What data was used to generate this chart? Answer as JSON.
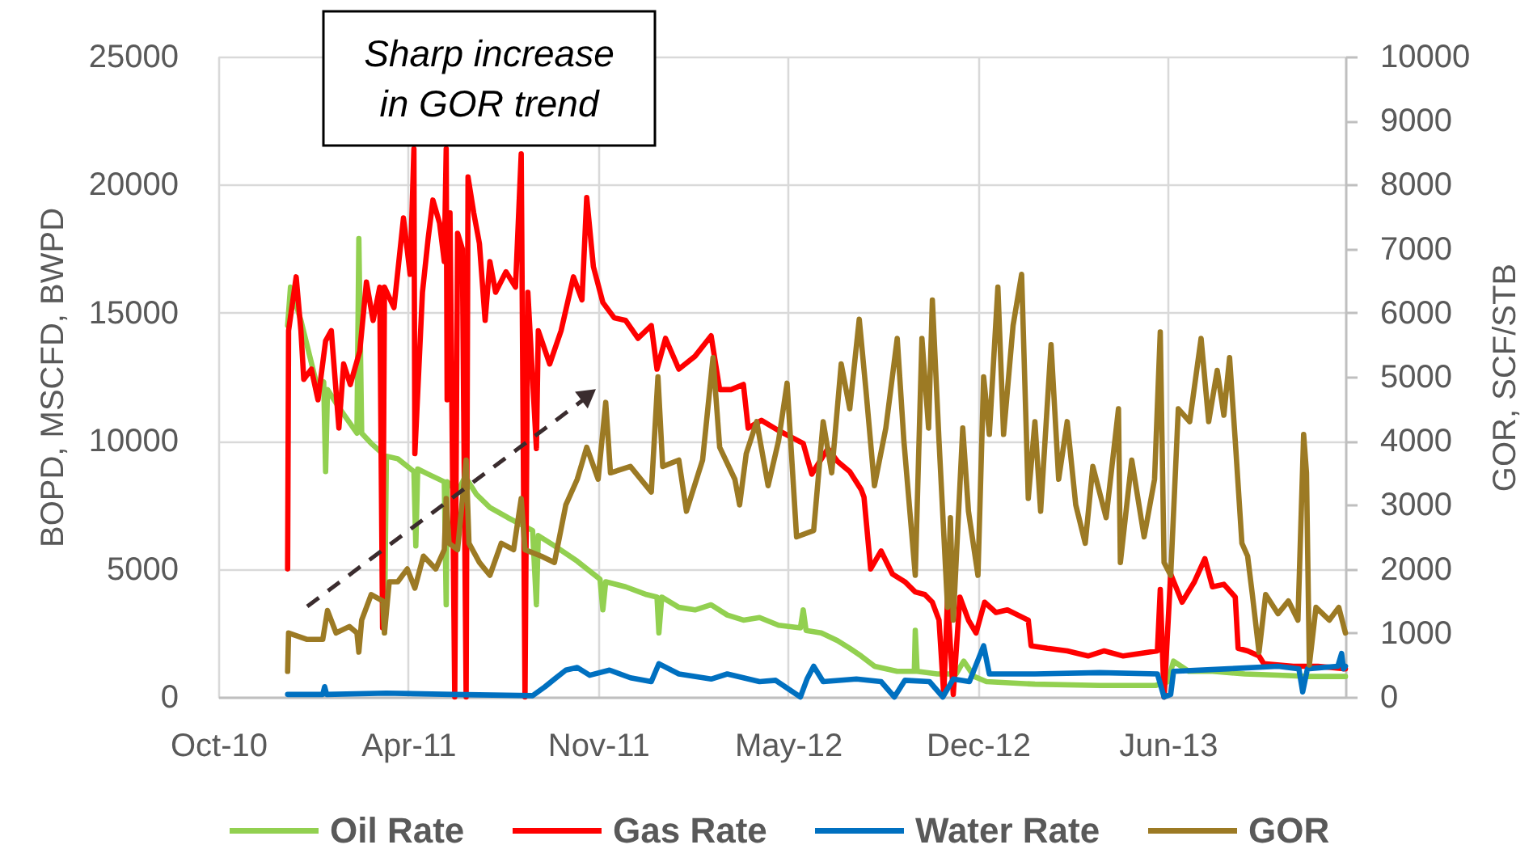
{
  "chart_data": {
    "type": "line",
    "ylabel": "BOPD, MSCFD, BWPD",
    "y2label": "GOR, SCF/STB",
    "annotations": [
      "Sharp increase\nin GOR trend"
    ],
    "xlim": [
      "2010-10-01",
      "2013-12-31"
    ],
    "xticks": [
      {
        "value": "2010-10-01",
        "label": "Oct-10"
      },
      {
        "value": "2011-04-19",
        "label": "Apr-11"
      },
      {
        "value": "2011-11-05",
        "label": "Nov-11"
      },
      {
        "value": "2012-05-23",
        "label": "May-12"
      },
      {
        "value": "2012-12-09",
        "label": "Dec-12"
      },
      {
        "value": "2013-06-27",
        "label": "Jun-13"
      }
    ],
    "ylim": [
      0,
      25000
    ],
    "yticks": [
      0,
      5000,
      10000,
      15000,
      20000,
      25000
    ],
    "y2lim": [
      0,
      10000
    ],
    "y2ticks": [
      0,
      1000,
      2000,
      3000,
      4000,
      5000,
      6000,
      7000,
      8000,
      9000,
      10000
    ],
    "grid": true,
    "legend": "bottom",
    "series": [
      {
        "name": "Oil Rate",
        "color": "#92d050",
        "x": [
          "2010-12-13",
          "2010-12-16",
          "2010-12-27",
          "2011-01-14",
          "2011-01-20",
          "2011-01-22",
          "2011-01-24",
          "2011-02-05",
          "2011-02-24",
          "2011-02-26",
          "2011-03-01",
          "2011-03-11",
          "2011-03-23",
          "2011-03-25",
          "2011-03-27",
          "2011-04-08",
          "2011-04-25",
          "2011-04-27",
          "2011-04-29",
          "2011-05-10",
          "2011-05-27",
          "2011-05-29",
          "2011-05-30",
          "2011-06-10",
          "2011-06-18",
          "2011-06-30",
          "2011-07-14",
          "2011-08-02",
          "2011-08-28",
          "2011-09-01",
          "2011-09-03",
          "2011-09-20",
          "2011-10-14",
          "2011-10-31",
          "2011-11-07",
          "2011-11-10",
          "2011-11-13",
          "2011-12-04",
          "2011-12-26",
          "2012-01-06",
          "2012-01-08",
          "2012-01-11",
          "2012-01-29",
          "2012-02-15",
          "2012-03-03",
          "2012-03-20",
          "2012-04-06",
          "2012-04-23",
          "2012-05-13",
          "2012-06-05",
          "2012-06-08",
          "2012-06-11",
          "2012-06-27",
          "2012-07-14",
          "2012-07-27",
          "2012-08-08",
          "2012-08-22",
          "2012-09-15",
          "2012-10-03",
          "2012-10-04",
          "2012-10-06",
          "2012-10-27",
          "2012-11-16",
          "2012-11-24",
          "2012-12-05",
          "2012-12-18",
          "2013-02-07",
          "2013-04-16",
          "2013-06-14",
          "2013-06-27",
          "2013-07-03",
          "2013-07-19",
          "2013-08-13",
          "2013-09-16",
          "2013-10-21",
          "2013-11-23",
          "2013-12-31"
        ],
        "values": [
          14500,
          16000,
          14700,
          12000,
          12300,
          8800,
          12000,
          11300,
          10300,
          17900,
          10300,
          9900,
          9500,
          2500,
          9400,
          9300,
          8800,
          5900,
          8900,
          8700,
          8400,
          3600,
          8400,
          8000,
          8600,
          7900,
          7400,
          7000,
          6500,
          3600,
          6300,
          5900,
          5300,
          4800,
          4600,
          3400,
          4500,
          4300,
          4000,
          3900,
          2500,
          3900,
          3500,
          3400,
          3600,
          3200,
          3000,
          3100,
          2800,
          2700,
          3400,
          2600,
          2500,
          2200,
          1900,
          1600,
          1200,
          1000,
          1000,
          2600,
          1000,
          900,
          900,
          1400,
          800,
          600,
          500,
          450,
          450,
          600,
          1400,
          1000,
          1000,
          900,
          850,
          800,
          800
        ]
      },
      {
        "name": "Gas Rate",
        "color": "#ff0000",
        "x": [
          "2010-12-13",
          "2010-12-14",
          "2010-12-22",
          "2010-12-27",
          "2010-12-30",
          "2011-01-07",
          "2011-01-14",
          "2011-01-22",
          "2011-01-28",
          "2011-02-05",
          "2011-02-10",
          "2011-02-17",
          "2011-02-27",
          "2011-03-06",
          "2011-03-13",
          "2011-03-20",
          "2011-03-23",
          "2011-03-25",
          "2011-04-04",
          "2011-04-14",
          "2011-04-21",
          "2011-04-25",
          "2011-04-26",
          "2011-05-04",
          "2011-05-10",
          "2011-05-15",
          "2011-05-22",
          "2011-05-27",
          "2011-05-29",
          "2011-05-30",
          "2011-06-02",
          "2011-06-07",
          "2011-06-10",
          "2011-06-15",
          "2011-06-19",
          "2011-06-21",
          "2011-06-27",
          "2011-07-03",
          "2011-07-09",
          "2011-07-14",
          "2011-07-20",
          "2011-07-31",
          "2011-08-10",
          "2011-08-16",
          "2011-08-20",
          "2011-08-23",
          "2011-09-01",
          "2011-09-03",
          "2011-09-15",
          "2011-09-27",
          "2011-10-10",
          "2011-10-19",
          "2011-10-24",
          "2011-10-31",
          "2011-11-10",
          "2011-11-22",
          "2011-12-04",
          "2011-12-17",
          "2011-12-31",
          "2012-01-06",
          "2012-01-15",
          "2012-01-29",
          "2012-02-15",
          "2012-03-03",
          "2012-03-12",
          "2012-03-24",
          "2012-04-06",
          "2012-04-11",
          "2012-04-25",
          "2012-05-13",
          "2012-06-08",
          "2012-06-17",
          "2012-07-04",
          "2012-07-14",
          "2012-07-27",
          "2012-08-08",
          "2012-08-11",
          "2012-08-18",
          "2012-08-29",
          "2012-09-10",
          "2012-09-23",
          "2012-10-04",
          "2012-10-14",
          "2012-10-22",
          "2012-10-29",
          "2012-11-03",
          "2012-11-07",
          "2012-11-13",
          "2012-11-20",
          "2012-11-29",
          "2012-12-07",
          "2012-12-16",
          "2012-12-28",
          "2013-01-09",
          "2013-01-31",
          "2013-02-03",
          "2013-02-20",
          "2013-03-13",
          "2013-04-04",
          "2013-04-21",
          "2013-05-11",
          "2013-06-16",
          "2013-06-19",
          "2013-06-23",
          "2013-06-30",
          "2013-07-12",
          "2013-07-25",
          "2013-08-05",
          "2013-08-13",
          "2013-08-25",
          "2013-09-06",
          "2013-09-09",
          "2013-09-19",
          "2013-10-01",
          "2013-10-06",
          "2013-11-06",
          "2013-12-02",
          "2013-12-31"
        ],
        "values": [
          5000,
          14300,
          16400,
          14300,
          12400,
          12800,
          11600,
          13900,
          14300,
          10500,
          13000,
          12200,
          13500,
          16200,
          14700,
          16000,
          2700,
          16000,
          15200,
          18700,
          16500,
          21400,
          9500,
          15800,
          17900,
          19400,
          18500,
          17000,
          21400,
          11600,
          18900,
          0,
          18100,
          17500,
          0,
          20300,
          18900,
          17700,
          14700,
          17000,
          15800,
          16600,
          16000,
          21200,
          0,
          15800,
          9700,
          14300,
          13000,
          14300,
          16400,
          15500,
          19500,
          16800,
          15400,
          14800,
          14700,
          14000,
          14500,
          12800,
          14000,
          12800,
          13300,
          14100,
          12000,
          12000,
          12200,
          10500,
          10800,
          10400,
          9900,
          8700,
          9700,
          9200,
          8800,
          8100,
          7800,
          5000,
          5700,
          4800,
          4500,
          4100,
          4000,
          3700,
          3000,
          100,
          3900,
          100,
          3900,
          3000,
          2500,
          3700,
          3300,
          3400,
          3000,
          2000,
          1900,
          1800,
          1600,
          1800,
          1600,
          1800,
          4200,
          0,
          4800,
          3700,
          4500,
          5400,
          4300,
          4400,
          3900,
          1900,
          1800,
          1600,
          1300,
          1200,
          1200,
          1100
        ]
      },
      {
        "name": "Water Rate",
        "color": "#0070c0",
        "x": [
          "2010-12-13",
          "2011-01-19",
          "2011-01-21",
          "2011-01-23",
          "2011-03-27",
          "2011-06-05",
          "2011-08-28",
          "2011-09-10",
          "2011-09-20",
          "2011-10-02",
          "2011-10-14",
          "2011-10-27",
          "2011-11-17",
          "2011-12-09",
          "2011-12-31",
          "2012-01-08",
          "2012-01-29",
          "2012-03-03",
          "2012-03-20",
          "2012-04-23",
          "2012-05-10",
          "2012-06-05",
          "2012-06-12",
          "2012-06-19",
          "2012-06-29",
          "2012-08-03",
          "2012-08-29",
          "2012-09-12",
          "2012-09-23",
          "2012-10-19",
          "2012-11-02",
          "2012-11-13",
          "2012-11-30",
          "2012-12-15",
          "2012-12-21",
          "2013-02-07",
          "2013-04-16",
          "2013-06-16",
          "2013-06-23",
          "2013-06-30",
          "2013-07-03",
          "2013-08-30",
          "2013-10-21",
          "2013-11-12",
          "2013-11-16",
          "2013-11-21",
          "2013-12-23",
          "2013-12-27",
          "2013-12-29",
          "2013-12-31"
        ],
        "values": [
          100,
          100,
          400,
          100,
          150,
          100,
          50,
          400,
          700,
          1050,
          1150,
          850,
          1050,
          750,
          600,
          1300,
          900,
          700,
          900,
          600,
          650,
          0,
          700,
          1200,
          600,
          700,
          600,
          0,
          650,
          600,
          0,
          700,
          600,
          2000,
          900,
          900,
          950,
          900,
          0,
          100,
          1000,
          1100,
          1200,
          1100,
          200,
          1100,
          1200,
          1700,
          1100,
          1200
        ]
      },
      {
        "name": "GOR",
        "color": "#9c7a24",
        "axis": "y2",
        "x": [
          "2010-12-13",
          "2010-12-14",
          "2011-01-02",
          "2011-01-19",
          "2011-01-24",
          "2011-02-02",
          "2011-02-16",
          "2011-02-24",
          "2011-02-26",
          "2011-03-01",
          "2011-03-11",
          "2011-03-23",
          "2011-03-25",
          "2011-03-30",
          "2011-04-08",
          "2011-04-18",
          "2011-04-26",
          "2011-05-05",
          "2011-05-18",
          "2011-05-27",
          "2011-05-29",
          "2011-06-01",
          "2011-06-10",
          "2011-06-19",
          "2011-06-22",
          "2011-07-03",
          "2011-07-14",
          "2011-07-26",
          "2011-08-08",
          "2011-08-16",
          "2011-08-20",
          "2011-09-06",
          "2011-09-20",
          "2011-10-02",
          "2011-10-14",
          "2011-10-24",
          "2011-11-05",
          "2011-11-13",
          "2011-11-18",
          "2011-12-09",
          "2011-12-31",
          "2012-01-07",
          "2012-01-12",
          "2012-01-29",
          "2012-02-06",
          "2012-02-23",
          "2012-03-05",
          "2012-03-12",
          "2012-03-28",
          "2012-04-02",
          "2012-04-09",
          "2012-04-20",
          "2012-05-02",
          "2012-05-13",
          "2012-05-22",
          "2012-06-01",
          "2012-06-19",
          "2012-06-29",
          "2012-07-08",
          "2012-07-18",
          "2012-07-27",
          "2012-08-06",
          "2012-08-13",
          "2012-08-22",
          "2012-09-03",
          "2012-09-15",
          "2012-09-22",
          "2012-10-04",
          "2012-10-11",
          "2012-10-18",
          "2012-10-22",
          "2012-10-29",
          "2012-11-07",
          "2012-11-10",
          "2012-11-13",
          "2012-11-23",
          "2012-11-29",
          "2012-12-09",
          "2012-12-15",
          "2012-12-21",
          "2012-12-30",
          "2013-01-05",
          "2013-01-15",
          "2013-01-24",
          "2013-01-31",
          "2013-02-07",
          "2013-02-13",
          "2013-02-24",
          "2013-03-04",
          "2013-03-13",
          "2013-03-22",
          "2013-04-01",
          "2013-04-09",
          "2013-04-23",
          "2013-05-06",
          "2013-05-08",
          "2013-05-20",
          "2013-06-02",
          "2013-06-13",
          "2013-06-19",
          "2013-06-23",
          "2013-06-30",
          "2013-07-08",
          "2013-07-20",
          "2013-08-01",
          "2013-08-09",
          "2013-08-18",
          "2013-08-25",
          "2013-08-31",
          "2013-09-06",
          "2013-09-13",
          "2013-09-19",
          "2013-09-24",
          "2013-10-01",
          "2013-10-08",
          "2013-10-21",
          "2013-11-01",
          "2013-11-11",
          "2013-11-17",
          "2013-11-20",
          "2013-11-23",
          "2013-11-30",
          "2013-12-14",
          "2013-12-24",
          "2013-12-31"
        ],
        "values": [
          400,
          1000,
          900,
          900,
          1350,
          1000,
          1100,
          1000,
          700,
          1200,
          1600,
          1500,
          1000,
          1800,
          1800,
          2000,
          1700,
          2200,
          2000,
          2300,
          3100,
          2400,
          2300,
          3700,
          2400,
          2100,
          1900,
          2400,
          2300,
          3100,
          2300,
          2200,
          2100,
          3000,
          3400,
          3900,
          3400,
          4600,
          3500,
          3600,
          3200,
          5000,
          3600,
          3700,
          2900,
          3700,
          5300,
          3900,
          3400,
          3000,
          3800,
          4300,
          3300,
          4000,
          4900,
          2500,
          2600,
          4300,
          3500,
          5200,
          4500,
          5900,
          4800,
          3300,
          4200,
          5600,
          4000,
          1900,
          5600,
          4200,
          6200,
          4000,
          1400,
          2800,
          1200,
          4200,
          2900,
          1900,
          5000,
          4100,
          6400,
          4100,
          5800,
          6600,
          3100,
          4300,
          2900,
          5500,
          3400,
          4300,
          3000,
          2400,
          3600,
          2800,
          4500,
          2100,
          3700,
          2500,
          3400,
          5700,
          2100,
          1900,
          4500,
          4300,
          5600,
          4300,
          5100,
          4400,
          5300,
          4000,
          2400,
          2200,
          1600,
          700,
          1600,
          1300,
          1500,
          1200,
          4100,
          3500,
          500,
          1400,
          1200,
          1400,
          1000
        ]
      }
    ]
  }
}
